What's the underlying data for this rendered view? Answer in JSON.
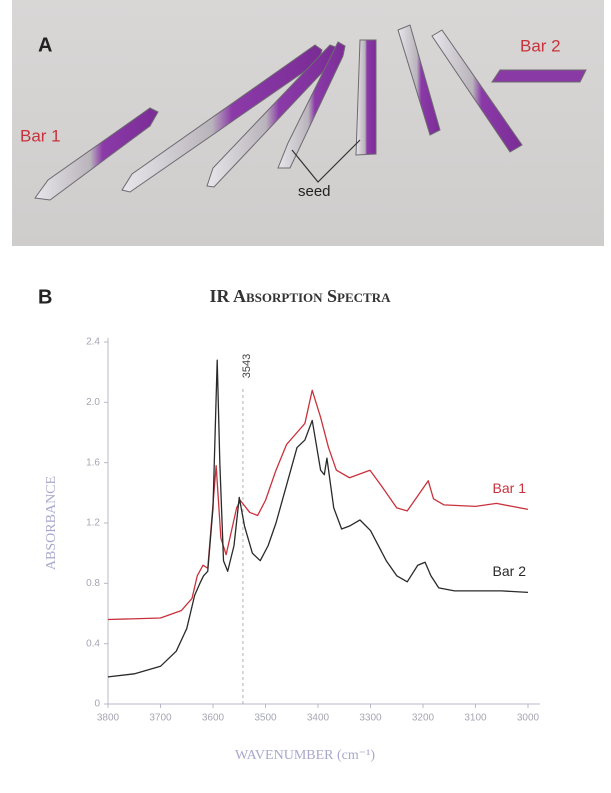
{
  "photo": {
    "label": "A",
    "annotations": [
      "Bar 1",
      "Bar 2",
      "seed"
    ]
  },
  "chart_data": {
    "type": "line",
    "panel_label": "B",
    "title": "IR Absorption Spectra",
    "x_label": "WAVENUMBER (cm⁻¹)",
    "y_label": "ABSORBANCE",
    "xlim": [
      3800,
      3000
    ],
    "xticks": [
      3800,
      3700,
      3600,
      3500,
      3400,
      3300,
      3200,
      3100,
      3000
    ],
    "ylim": [
      0,
      2.4
    ],
    "yticks": [
      0,
      0.4,
      0.8,
      1.2,
      1.6,
      {
        "value": 2,
        "label": "2.0"
      },
      2.4
    ],
    "annotations": [
      {
        "x": 3543,
        "text": "3543"
      }
    ],
    "series": [
      {
        "name": "Bar 1",
        "color": "#c8323c",
        "x": [
          3800,
          3700,
          3660,
          3640,
          3630,
          3619,
          3610,
          3594,
          3585,
          3575,
          3555,
          3548,
          3530,
          3515,
          3500,
          3480,
          3460,
          3440,
          3425,
          3411,
          3395,
          3380,
          3365,
          3340,
          3301,
          3280,
          3250,
          3230,
          3210,
          3190,
          3180,
          3160,
          3100,
          3060,
          3030,
          3000
        ],
        "values": [
          0.56,
          0.57,
          0.62,
          0.7,
          0.85,
          0.92,
          0.9,
          1.58,
          1.1,
          0.99,
          1.3,
          1.35,
          1.27,
          1.25,
          1.35,
          1.55,
          1.72,
          1.8,
          1.86,
          2.08,
          1.9,
          1.7,
          1.55,
          1.5,
          1.55,
          1.45,
          1.3,
          1.28,
          1.38,
          1.48,
          1.36,
          1.32,
          1.31,
          1.33,
          1.31,
          1.29
        ]
      },
      {
        "name": "Bar 2",
        "color": "#2a2a2a",
        "x": [
          3800,
          3750,
          3700,
          3670,
          3650,
          3635,
          3625,
          3618,
          3610,
          3600,
          3592,
          3587,
          3580,
          3572,
          3560,
          3550,
          3540,
          3525,
          3510,
          3495,
          3480,
          3460,
          3440,
          3425,
          3411,
          3395,
          3388,
          3383,
          3370,
          3355,
          3340,
          3320,
          3300,
          3270,
          3250,
          3230,
          3210,
          3196,
          3185,
          3170,
          3140,
          3100,
          3050,
          3000
        ],
        "values": [
          0.18,
          0.2,
          0.25,
          0.35,
          0.5,
          0.72,
          0.8,
          0.85,
          0.88,
          1.3,
          2.28,
          1.6,
          0.95,
          0.88,
          1.05,
          1.37,
          1.18,
          1.0,
          0.95,
          1.05,
          1.2,
          1.45,
          1.7,
          1.75,
          1.88,
          1.55,
          1.52,
          1.63,
          1.3,
          1.16,
          1.18,
          1.22,
          1.15,
          0.95,
          0.85,
          0.81,
          0.92,
          0.94,
          0.85,
          0.77,
          0.75,
          0.75,
          0.75,
          0.74
        ]
      }
    ]
  }
}
